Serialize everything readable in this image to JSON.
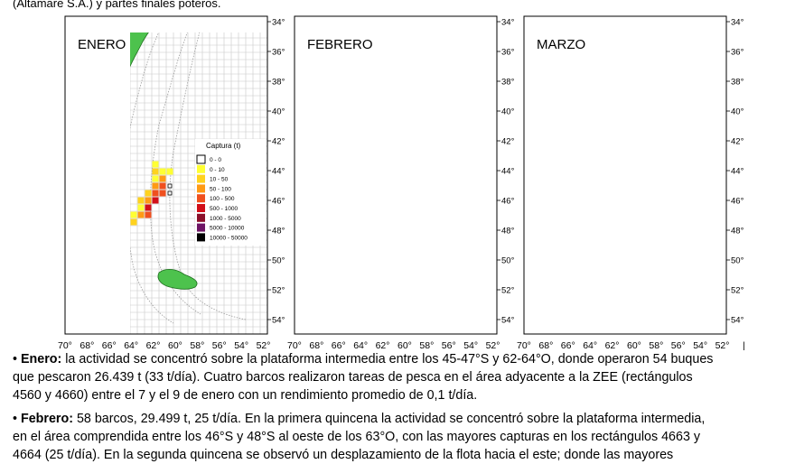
{
  "header_fragment": "(Altamare S.A.) y partes finales poteros.",
  "maps": [
    {
      "title": "ENERO"
    },
    {
      "title": "FEBRERO"
    },
    {
      "title": "MARZO"
    }
  ],
  "lat_ticks": [
    "34°",
    "36°",
    "38°",
    "40°",
    "42°",
    "44°",
    "46°",
    "48°",
    "50°",
    "52°",
    "54°"
  ],
  "lon_ticks": [
    "70°",
    "68°",
    "66°",
    "64°",
    "62°",
    "60°",
    "58°",
    "56°",
    "54°",
    "52°"
  ],
  "lon_last_fragment": "|",
  "legend": {
    "title": "Captura  (t)",
    "classes": [
      {
        "label": "0  -  0",
        "color": "#ffffff"
      },
      {
        "label": "0  -  10",
        "color": "#ffff33"
      },
      {
        "label": "10  -  50",
        "color": "#ffd21e"
      },
      {
        "label": "50  -  100",
        "color": "#ff9a14"
      },
      {
        "label": "100  -  500",
        "color": "#f0501e"
      },
      {
        "label": "500  -  1000",
        "color": "#d20f19"
      },
      {
        "label": "1000  -  5000",
        "color": "#8c0f2a"
      },
      {
        "label": "5000  -  10000",
        "color": "#6e1464"
      },
      {
        "label": "10000  -  50000",
        "color": "#000000"
      }
    ]
  },
  "colors": {
    "land": "#4dc24d",
    "ocean": "#ffffff",
    "grid": "#c8c8c8",
    "isobath": "#9a9a9a"
  },
  "paragraphs": {
    "enero": {
      "label": "Enero:",
      "line1": "la actividad se concentró sobre la plataforma intermedia entre los 45-47°S y 62-64°O, donde operaron 54 buques",
      "line2": "que pescaron 26.439 t (33 t/día). Cuatro barcos realizaron tareas de pesca en el área adyacente a la ZEE (rectángulos",
      "line3": "4560 y 4660) entre el 7 y el 9 de enero con un rendimiento promedio de 0,1 t/día."
    },
    "febrero": {
      "label": "Febrero:",
      "line1": "58 barcos, 29.499 t, 25 t/día. En la primera quincena la actividad se concentró sobre la plataforma intermedia,",
      "line2": "en el área comprendida entre los 46°S y 48°S al oeste de los 63°O, con las mayores capturas en los rectángulos 4663 y",
      "line3": "4664 (25 t/día). En la segunda quincena se observó un desplazamiento de la flota hacia el este; donde las mayores"
    }
  }
}
